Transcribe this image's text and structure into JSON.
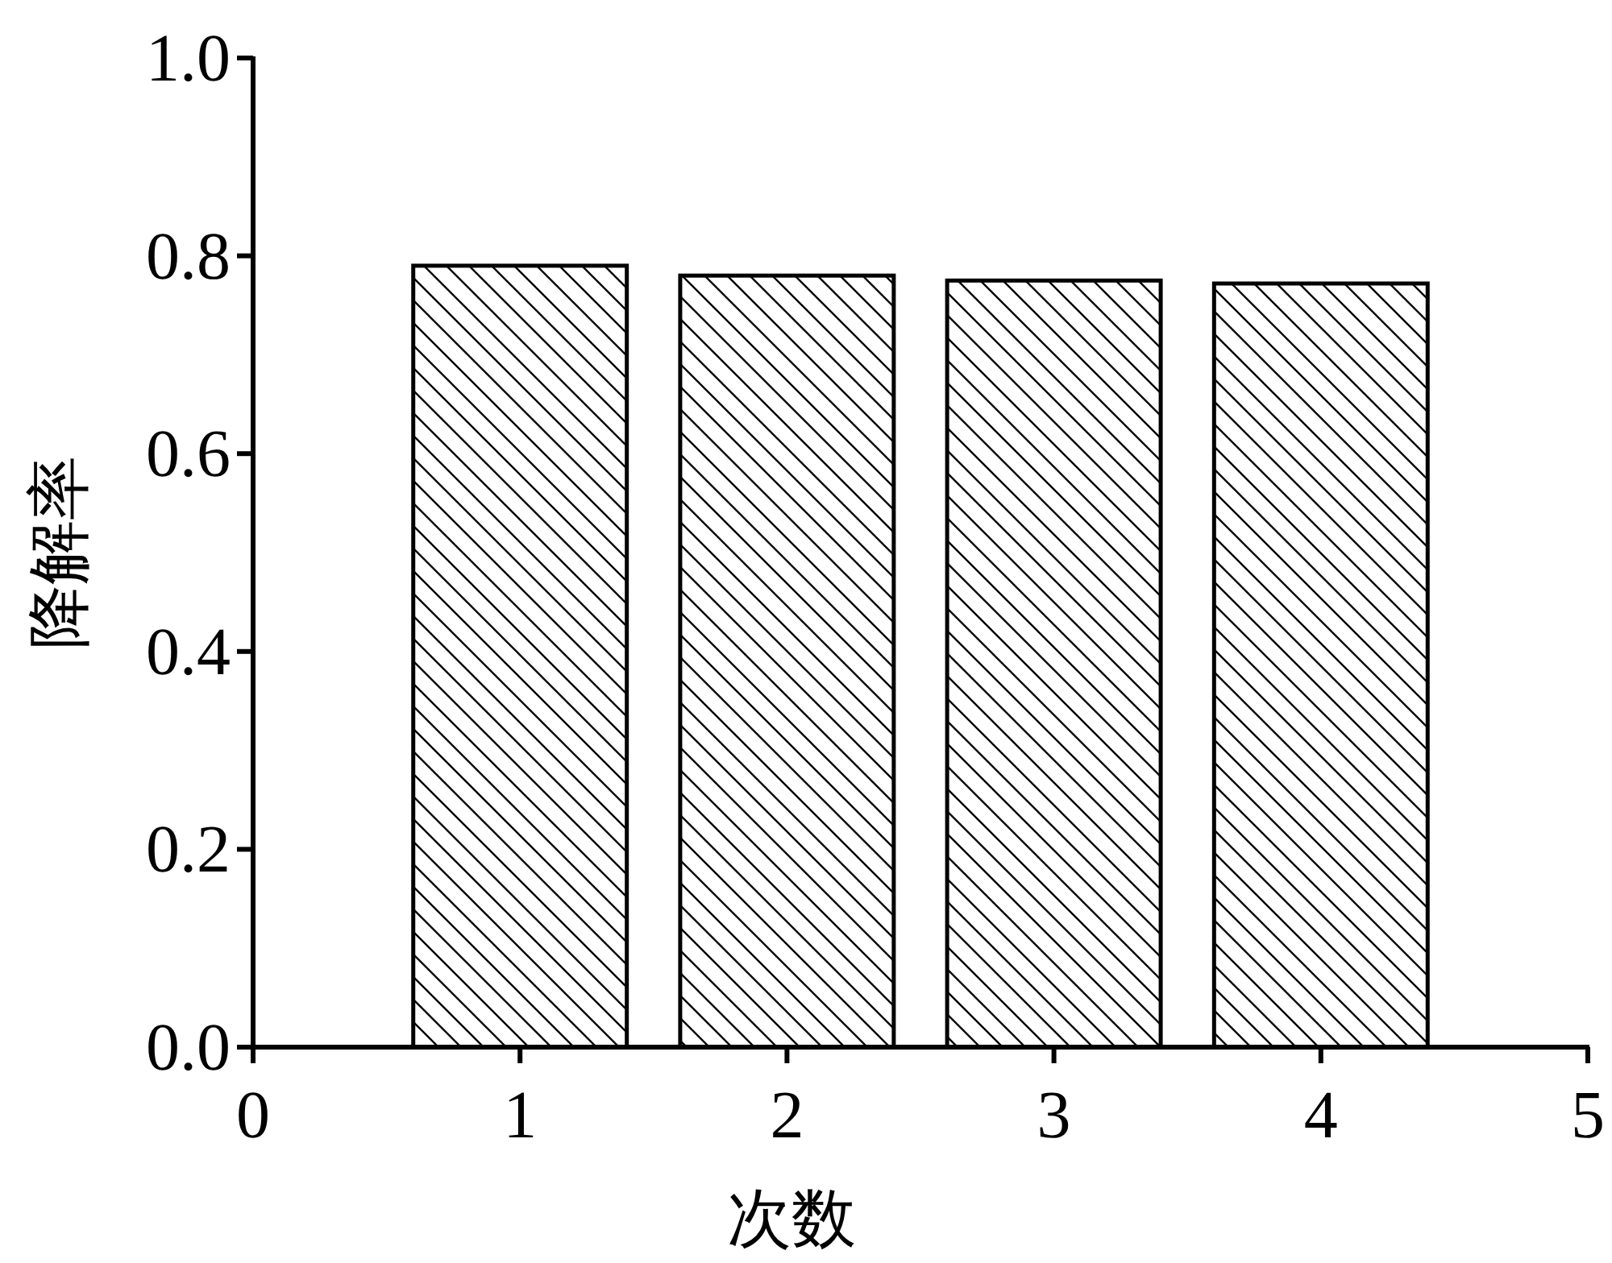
{
  "chart_data": {
    "type": "bar",
    "xlabel": "次数",
    "ylabel": "降解率",
    "x": [
      1,
      2,
      3,
      4
    ],
    "values": [
      0.79,
      0.78,
      0.775,
      0.772
    ],
    "color": "#000000",
    "xlim": [
      0,
      5
    ],
    "xticks": [
      0,
      1,
      2,
      3,
      4,
      5
    ],
    "ylim": [
      0,
      1
    ],
    "yticks": [
      {
        "value": 0,
        "label": "0.0"
      },
      {
        "value": 0.2,
        "label": "0.2"
      },
      {
        "value": 0.4,
        "label": "0.4"
      },
      {
        "value": 0.6,
        "label": "0.6"
      },
      {
        "value": 0.8,
        "label": "0.8"
      },
      {
        "value": 1,
        "label": "1.0"
      }
    ],
    "grid": false
  }
}
